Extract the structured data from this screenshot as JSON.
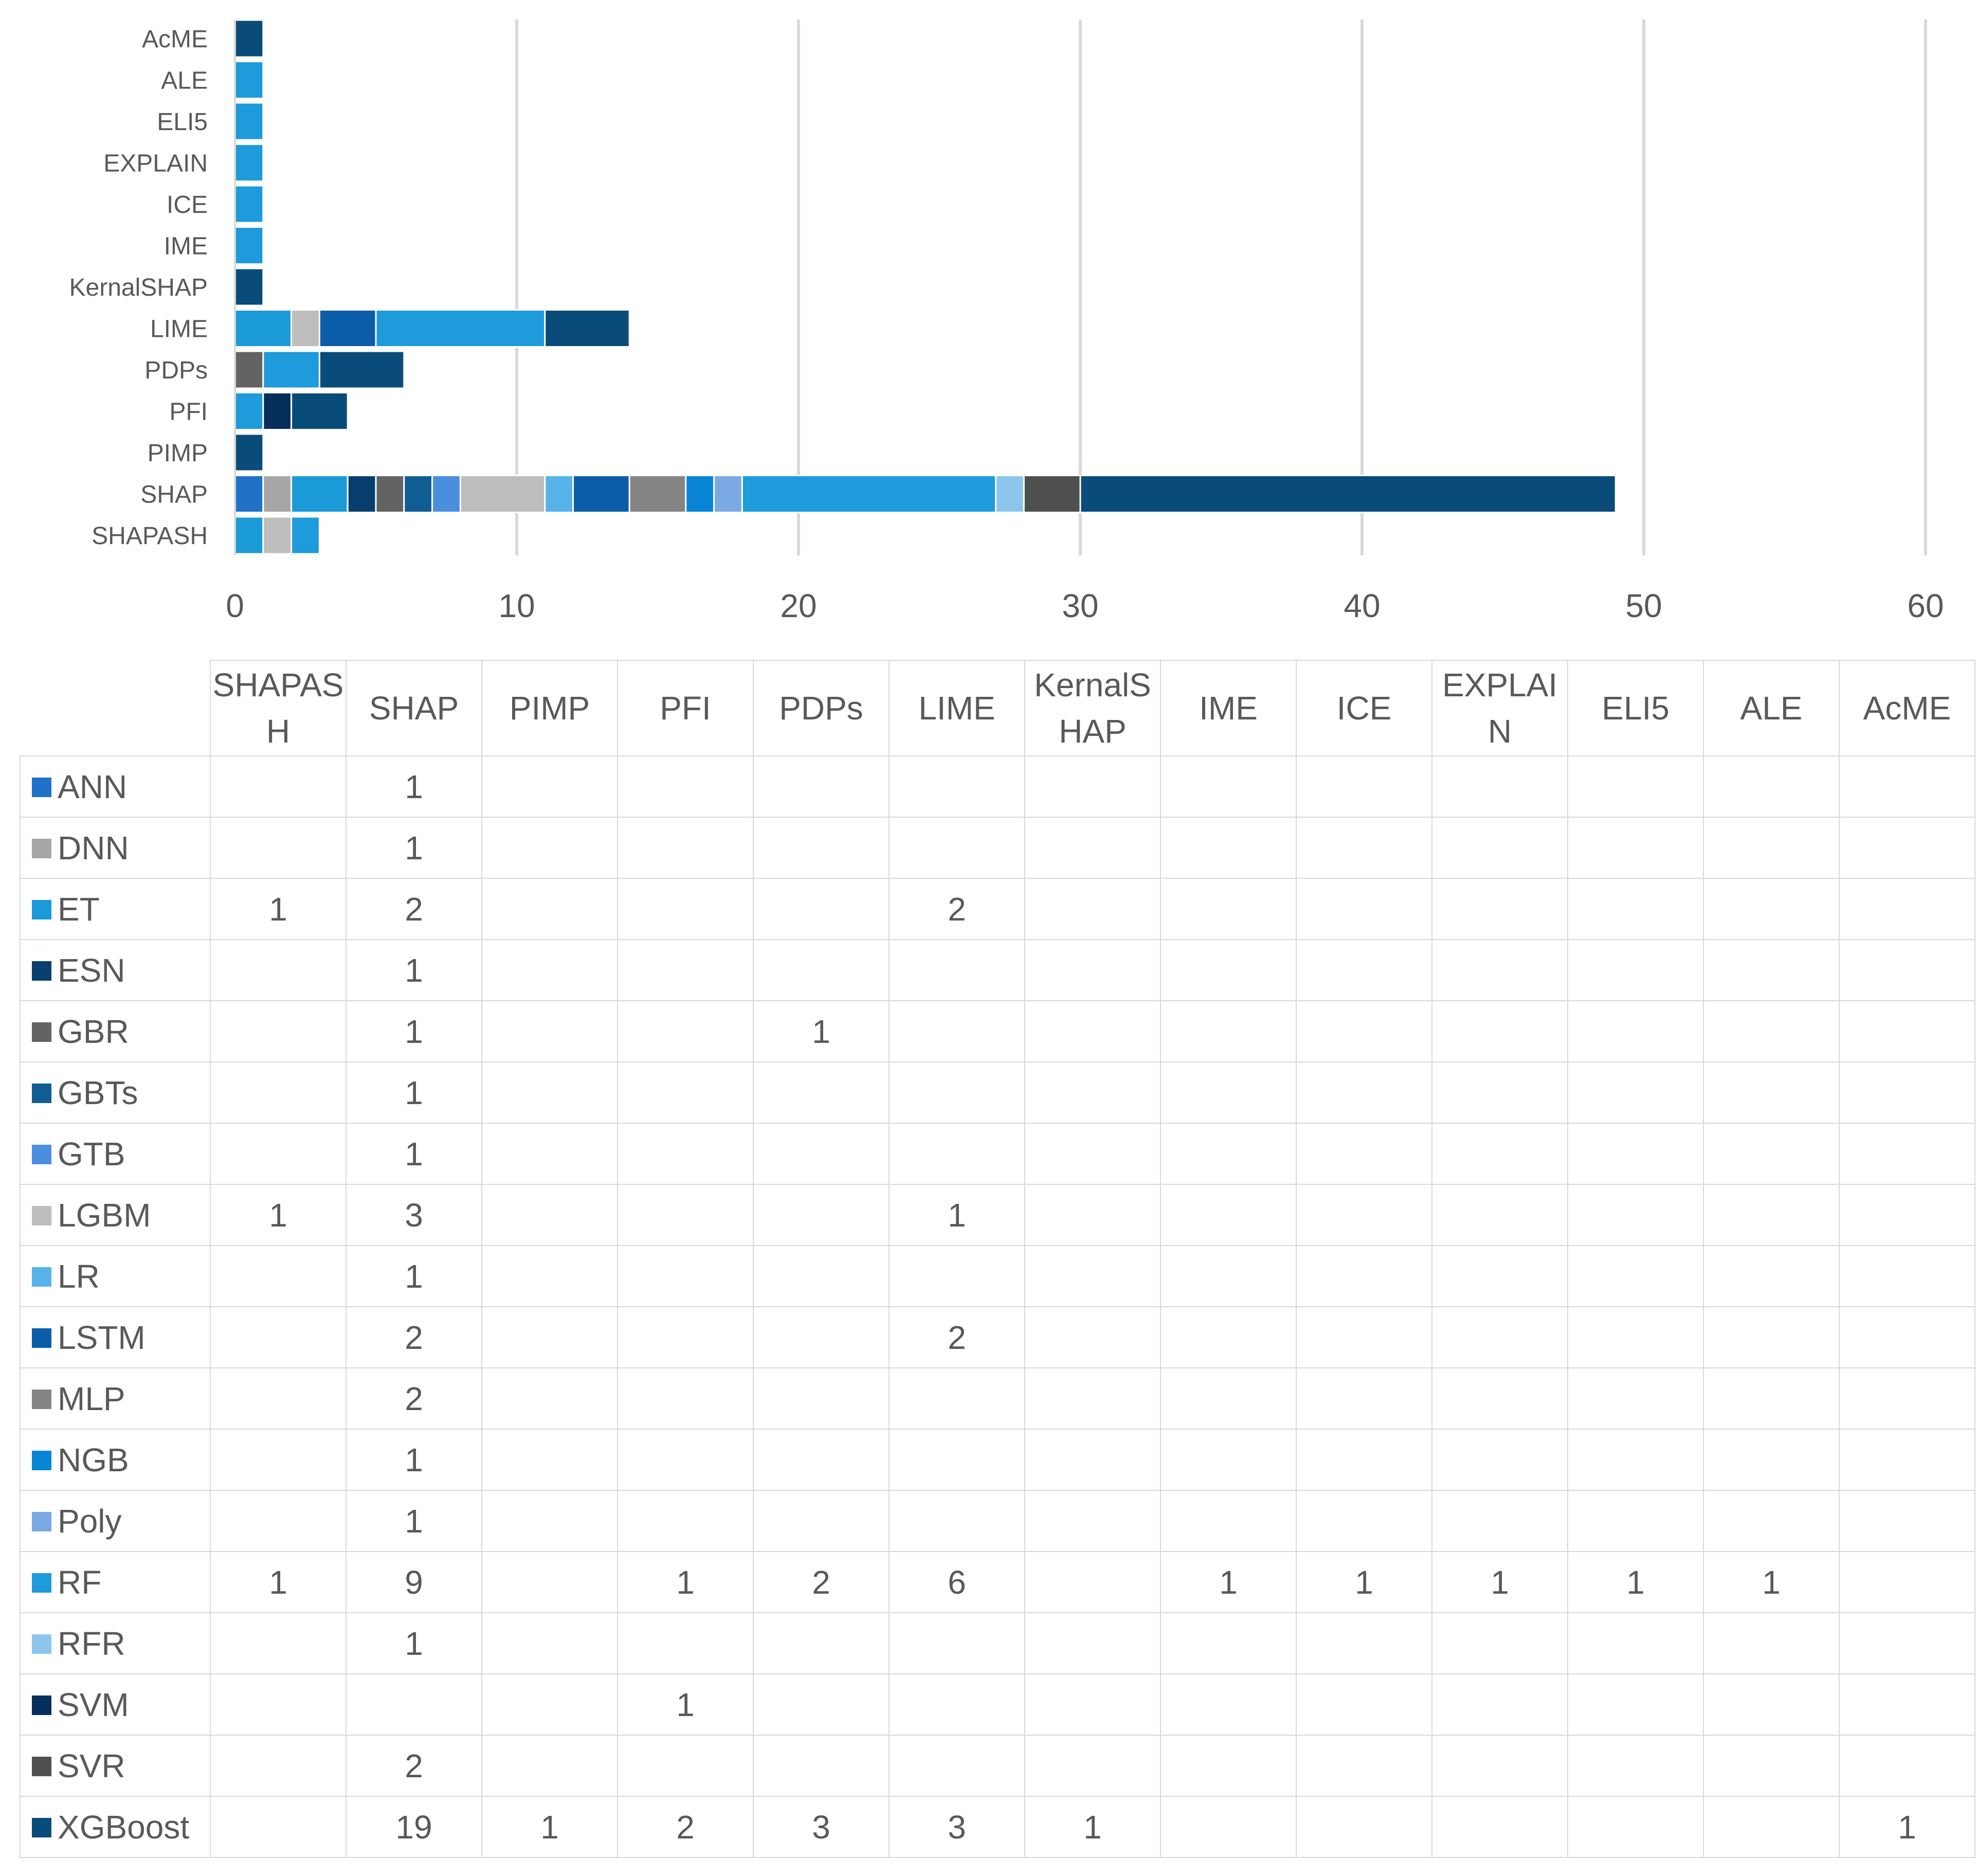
{
  "chart_data": {
    "type": "bar",
    "orientation": "horizontal",
    "stacked": true,
    "categories": [
      "AcME",
      "ALE",
      "ELI5",
      "EXPLAIN",
      "ICE",
      "IME",
      "KernalSHAP",
      "LIME",
      "PDPs",
      "PFI",
      "PIMP",
      "SHAP",
      "SHAPASH"
    ],
    "xlim": [
      0,
      60
    ],
    "xticks": [
      "0",
      "10",
      "20",
      "30",
      "40",
      "50",
      "60"
    ],
    "grid": true,
    "legend": "table-below",
    "table_columns": [
      "SHAPASH",
      "SHAP",
      "PIMP",
      "PFI",
      "PDPs",
      "LIME",
      "KernalSHAP",
      "IME",
      "ICE",
      "EXPLAIN",
      "ELI5",
      "ALE",
      "AcME"
    ],
    "table_column_labels": [
      "SHAPAS H",
      "SHAP",
      "PIMP",
      "PFI",
      "PDPs",
      "LIME",
      "KernalS HAP",
      "IME",
      "ICE",
      "EXPLAI N",
      "ELI5",
      "ALE",
      "AcME"
    ],
    "series": [
      {
        "name": "ANN",
        "color": "#1f72c8",
        "values": [
          0,
          0,
          0,
          0,
          0,
          0,
          0,
          0,
          0,
          0,
          0,
          1,
          0
        ]
      },
      {
        "name": "DNN",
        "color": "#a6a6a6",
        "values": [
          0,
          0,
          0,
          0,
          0,
          0,
          0,
          0,
          0,
          0,
          0,
          1,
          0
        ]
      },
      {
        "name": "ET",
        "color": "#1b9ad8",
        "values": [
          0,
          0,
          0,
          0,
          0,
          0,
          0,
          2,
          0,
          0,
          0,
          2,
          1
        ]
      },
      {
        "name": "ESN",
        "color": "#083f6e",
        "values": [
          0,
          0,
          0,
          0,
          0,
          0,
          0,
          0,
          0,
          0,
          0,
          1,
          0
        ]
      },
      {
        "name": "GBR",
        "color": "#636363",
        "values": [
          0,
          0,
          0,
          0,
          0,
          0,
          0,
          0,
          1,
          0,
          0,
          1,
          0
        ]
      },
      {
        "name": "GBTs",
        "color": "#0f5d93",
        "values": [
          0,
          0,
          0,
          0,
          0,
          0,
          0,
          0,
          0,
          0,
          0,
          1,
          0
        ]
      },
      {
        "name": "GTB",
        "color": "#4a8fde",
        "values": [
          0,
          0,
          0,
          0,
          0,
          0,
          0,
          0,
          0,
          0,
          0,
          1,
          0
        ]
      },
      {
        "name": "LGBM",
        "color": "#bdbdbd",
        "values": [
          0,
          0,
          0,
          0,
          0,
          0,
          0,
          1,
          0,
          0,
          0,
          3,
          1
        ]
      },
      {
        "name": "LR",
        "color": "#56b2e8",
        "values": [
          0,
          0,
          0,
          0,
          0,
          0,
          0,
          0,
          0,
          0,
          0,
          1,
          0
        ]
      },
      {
        "name": "LSTM",
        "color": "#0b5ca9",
        "values": [
          0,
          0,
          0,
          0,
          0,
          0,
          0,
          2,
          0,
          0,
          0,
          2,
          0
        ]
      },
      {
        "name": "MLP",
        "color": "#858585",
        "values": [
          0,
          0,
          0,
          0,
          0,
          0,
          0,
          0,
          0,
          0,
          0,
          2,
          0
        ]
      },
      {
        "name": "NGB",
        "color": "#0985d6",
        "values": [
          0,
          0,
          0,
          0,
          0,
          0,
          0,
          0,
          0,
          0,
          0,
          1,
          0
        ]
      },
      {
        "name": "Poly",
        "color": "#7aa9e3",
        "values": [
          0,
          0,
          0,
          0,
          0,
          0,
          0,
          0,
          0,
          0,
          0,
          1,
          0
        ]
      },
      {
        "name": "RF",
        "color": "#1d9bdb",
        "values": [
          0,
          1,
          1,
          1,
          1,
          1,
          0,
          6,
          2,
          1,
          0,
          9,
          1
        ]
      },
      {
        "name": "RFR",
        "color": "#8cc6ec",
        "values": [
          0,
          0,
          0,
          0,
          0,
          0,
          0,
          0,
          0,
          0,
          0,
          1,
          0
        ]
      },
      {
        "name": "SVM",
        "color": "#062e5c",
        "values": [
          0,
          0,
          0,
          0,
          0,
          0,
          0,
          0,
          0,
          1,
          0,
          0,
          0
        ]
      },
      {
        "name": "SVR",
        "color": "#4f4f4f",
        "values": [
          0,
          0,
          0,
          0,
          0,
          0,
          0,
          0,
          0,
          0,
          0,
          2,
          0
        ]
      },
      {
        "name": "XGBoost",
        "color": "#0a4c79",
        "values": [
          1,
          0,
          0,
          0,
          0,
          0,
          1,
          3,
          3,
          2,
          1,
          19,
          0
        ]
      }
    ]
  }
}
